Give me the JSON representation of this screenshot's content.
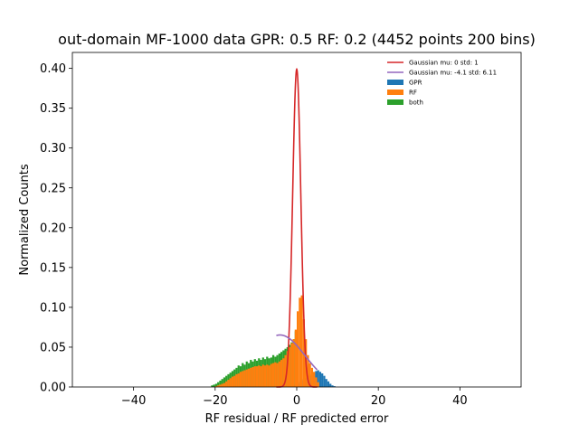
{
  "chart_data": {
    "type": "histogram",
    "title": "out-domain MF-1000 data GPR: 0.5 RF: 0.2 (4452 points 200 bins)",
    "xlabel": "RF residual / RF predicted error",
    "ylabel": "Normalized Counts",
    "xlim": [
      -55,
      55
    ],
    "ylim": [
      0,
      0.42
    ],
    "x_ticks": [
      -40,
      -20,
      0,
      20,
      40
    ],
    "x_tick_labels": [
      "−40",
      "−20",
      "0",
      "20",
      "40"
    ],
    "y_ticks": [
      0.0,
      0.05,
      0.1,
      0.15,
      0.2,
      0.25,
      0.3,
      0.35,
      0.4
    ],
    "y_tick_labels": [
      "0.00",
      "0.05",
      "0.10",
      "0.15",
      "0.20",
      "0.25",
      "0.30",
      "0.35",
      "0.40"
    ],
    "grid": false,
    "legend_position": "top-right",
    "legend": [
      {
        "label": "Gaussian mu: 0 std: 1",
        "kind": "line",
        "color": "#d62728"
      },
      {
        "label": "Gaussian mu: -4.1 std: 6.11",
        "kind": "line",
        "color": "#9467bd"
      },
      {
        "label": "GPR",
        "kind": "patch",
        "color": "#1f77b4"
      },
      {
        "label": "RF",
        "kind": "patch",
        "color": "#ff7f0e"
      },
      {
        "label": "both",
        "kind": "patch",
        "color": "#2ca02c"
      }
    ],
    "lines": [
      {
        "name": "Gaussian mu: 0 std: 1",
        "mu": 0,
        "std": 1,
        "x_range": [
          -5,
          5
        ],
        "color": "#d62728"
      },
      {
        "name": "Gaussian mu: -4.1 std: 6.11",
        "mu": -4.1,
        "std": 6.11,
        "x_range": [
          -5,
          5
        ],
        "color": "#9467bd"
      }
    ],
    "series": [
      {
        "name": "GPR",
        "color": "#1f77b4",
        "bin_width": 0.5,
        "x": [
          -2.0,
          -1.5,
          -1.0,
          -0.5,
          0.0,
          0.5,
          1.0,
          1.5,
          2.0,
          2.5,
          3.0,
          3.5,
          4.0,
          4.5,
          5.0,
          5.5,
          6.0,
          6.5,
          7.0,
          7.5,
          8.0,
          8.5,
          9.0
        ],
        "values": [
          0.001,
          0.001,
          0.002,
          0.003,
          0.004,
          0.006,
          0.008,
          0.01,
          0.011,
          0.013,
          0.014,
          0.016,
          0.018,
          0.02,
          0.021,
          0.019,
          0.017,
          0.014,
          0.01,
          0.007,
          0.004,
          0.002,
          0.001
        ]
      },
      {
        "name": "both",
        "color": "#2ca02c",
        "bin_width": 0.5,
        "x": [
          -21.0,
          -20.5,
          -20.0,
          -19.5,
          -19.0,
          -18.5,
          -18.0,
          -17.5,
          -17.0,
          -16.5,
          -16.0,
          -15.5,
          -15.0,
          -14.5,
          -14.0,
          -13.5,
          -13.0,
          -12.5,
          -12.0,
          -11.5,
          -11.0,
          -10.5,
          -10.0,
          -9.5,
          -9.0,
          -8.5,
          -8.0,
          -7.5,
          -7.0,
          -6.5,
          -6.0,
          -5.5,
          -5.0,
          -4.5,
          -4.0,
          -3.5,
          -3.0,
          -2.5,
          -2.0,
          -1.5,
          -1.0,
          -0.5
        ],
        "values": [
          0.002,
          0.003,
          0.004,
          0.006,
          0.008,
          0.01,
          0.012,
          0.014,
          0.016,
          0.018,
          0.02,
          0.022,
          0.024,
          0.027,
          0.026,
          0.03,
          0.028,
          0.032,
          0.03,
          0.034,
          0.032,
          0.035,
          0.033,
          0.036,
          0.034,
          0.037,
          0.035,
          0.038,
          0.036,
          0.037,
          0.04,
          0.038,
          0.04,
          0.042,
          0.044,
          0.046,
          0.048,
          0.05,
          0.053,
          0.056,
          0.06,
          0.07
        ]
      },
      {
        "name": "RF",
        "color": "#ff7f0e",
        "bin_width": 0.5,
        "x": [
          -20.0,
          -19.5,
          -19.0,
          -18.5,
          -18.0,
          -17.5,
          -17.0,
          -16.5,
          -16.0,
          -15.5,
          -15.0,
          -14.5,
          -14.0,
          -13.5,
          -13.0,
          -12.5,
          -12.0,
          -11.5,
          -11.0,
          -10.5,
          -10.0,
          -9.5,
          -9.0,
          -8.5,
          -8.0,
          -7.5,
          -7.0,
          -6.5,
          -6.0,
          -5.5,
          -5.0,
          -4.5,
          -4.0,
          -3.5,
          -3.0,
          -2.5,
          -2.0,
          -1.5,
          -1.0,
          -0.5,
          0.0,
          0.5,
          1.0,
          1.5,
          2.0,
          2.5,
          3.0,
          3.5,
          4.0,
          4.5,
          5.0
        ],
        "values": [
          0.001,
          0.002,
          0.003,
          0.004,
          0.005,
          0.007,
          0.009,
          0.011,
          0.013,
          0.014,
          0.016,
          0.017,
          0.019,
          0.02,
          0.021,
          0.022,
          0.023,
          0.024,
          0.025,
          0.026,
          0.026,
          0.027,
          0.026,
          0.028,
          0.027,
          0.028,
          0.027,
          0.029,
          0.03,
          0.031,
          0.03,
          0.032,
          0.034,
          0.036,
          0.04,
          0.045,
          0.05,
          0.055,
          0.06,
          0.072,
          0.095,
          0.112,
          0.115,
          0.085,
          0.06,
          0.04,
          0.03,
          0.024,
          0.019,
          0.012,
          0.006
        ]
      }
    ]
  }
}
